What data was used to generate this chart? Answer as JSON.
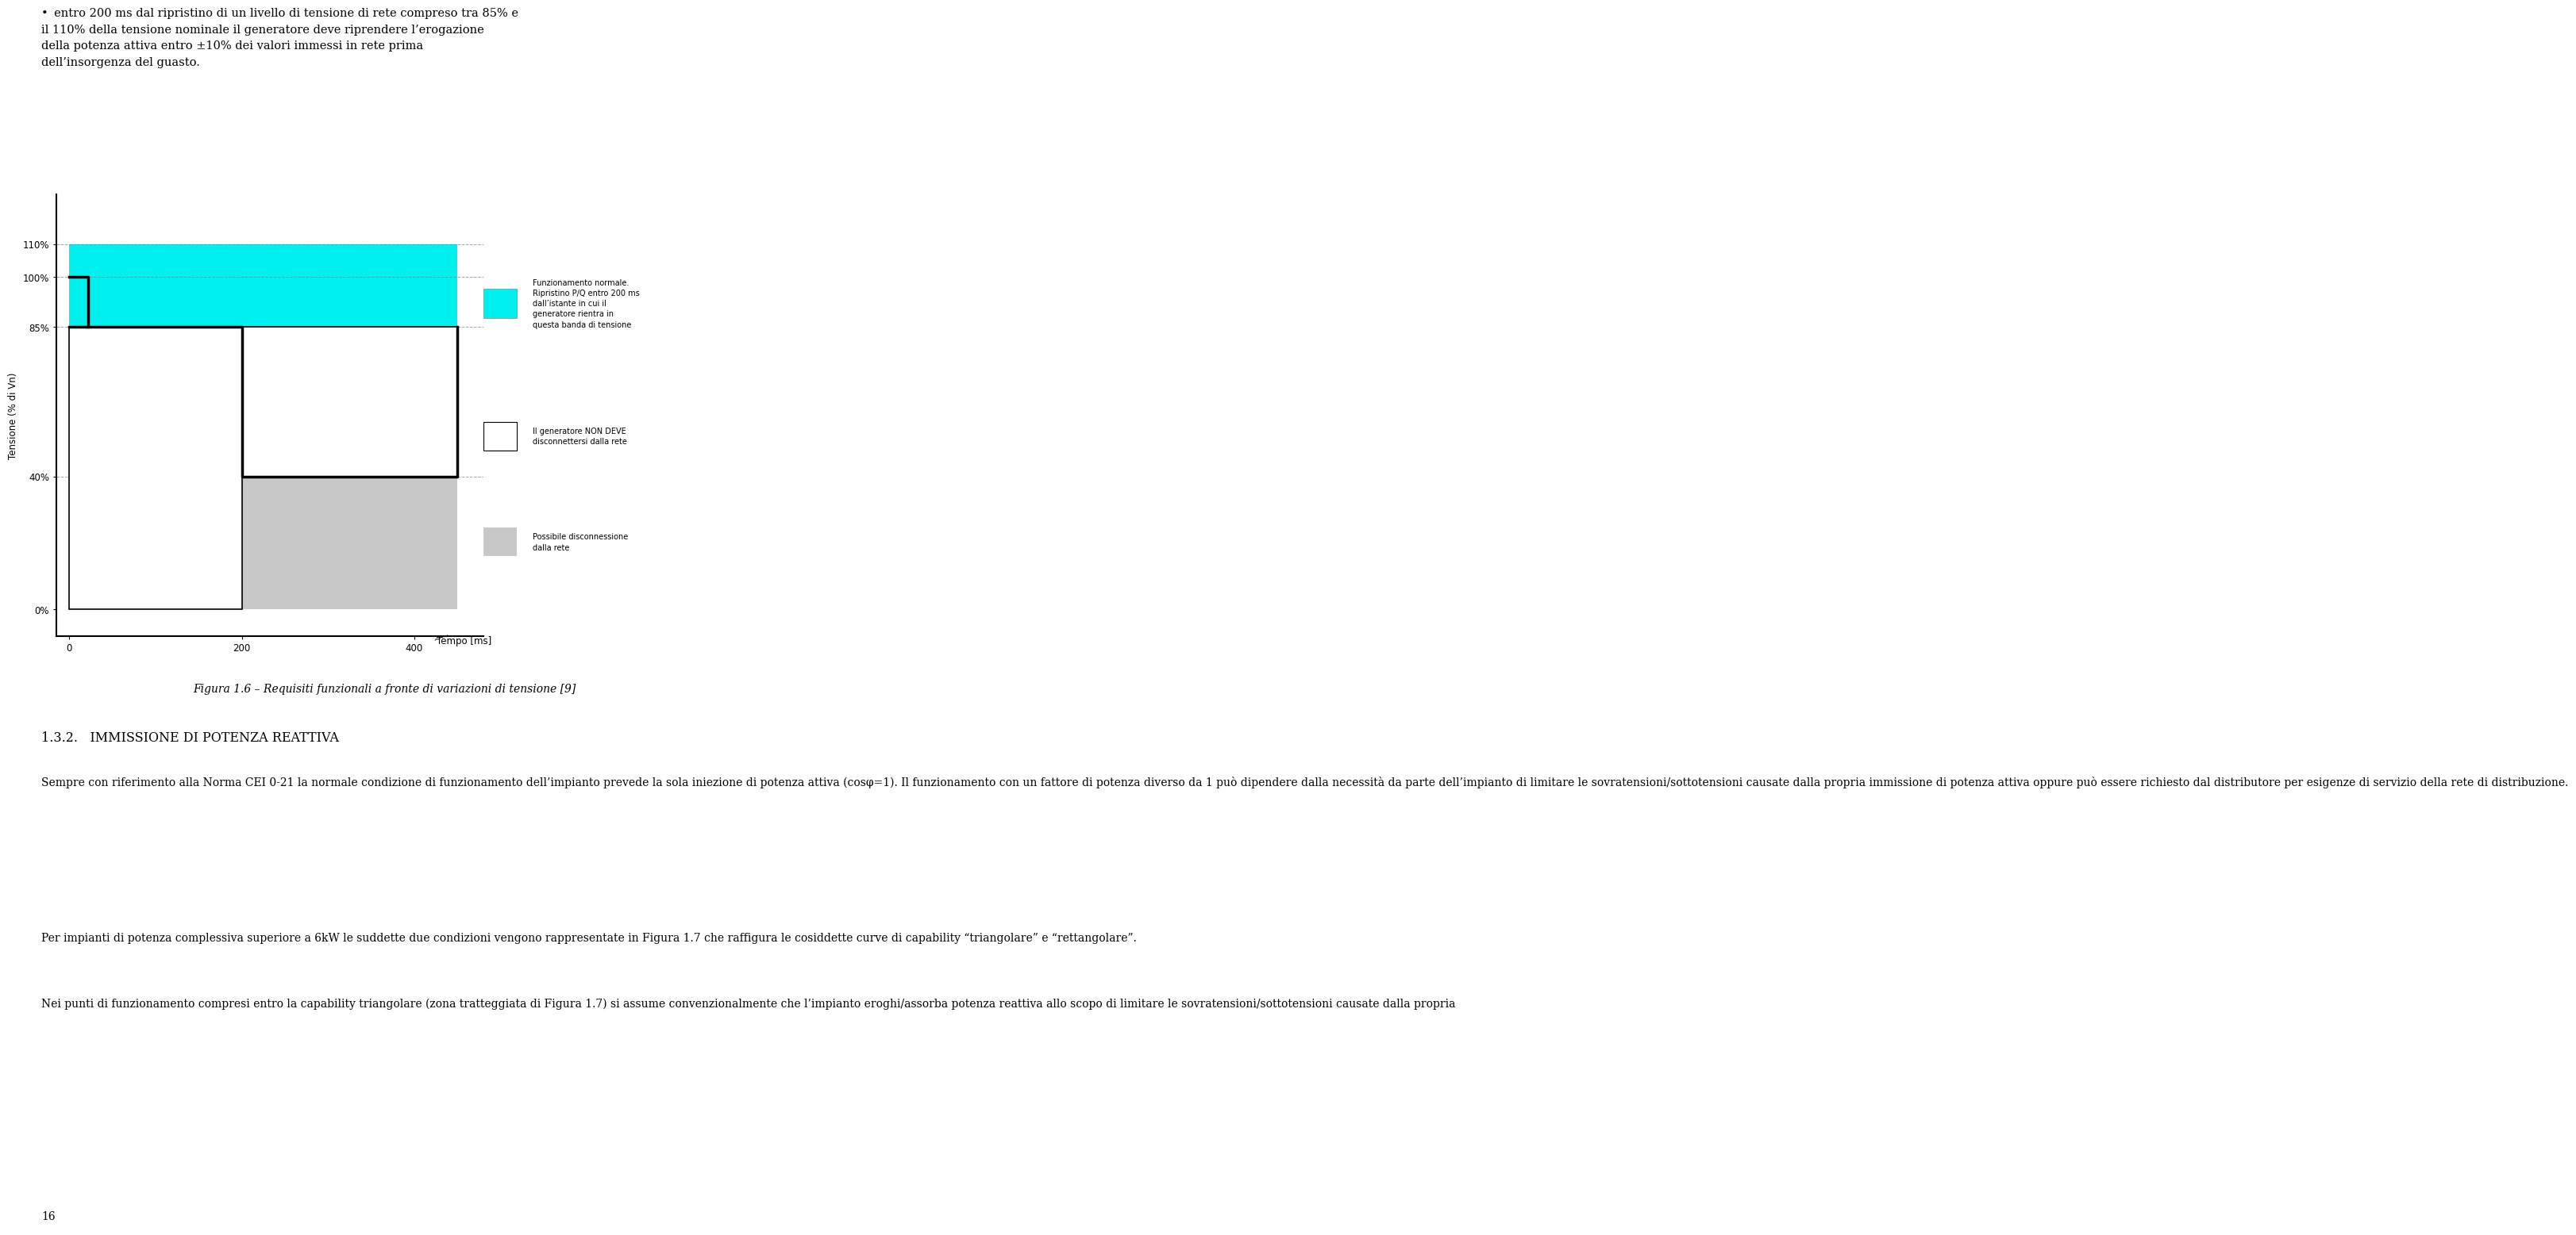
{
  "bullet_text": "entro 200 ms dal ripristino di un livello di tensione di rete compreso tra 85% e\nil 110% della tensione nominale il generatore deve riprendere l’erogazione\ndella potenza attiva entro ±10% dei valori immessi in rete prima\ndell’insorgenza del guasto.",
  "ylabel": "Tensione (% di Vn)",
  "xlabel": "Tempo [ms]",
  "fig_caption": "Figura 1.6 – Requisiti funzionali a fronte di variazioni di tensione [9]",
  "section_title": "1.3.2.   IMMISSIONE DI POTENZA REATTIVA",
  "body_text_1": "Sempre con riferimento alla Norma CEI 0-21 la normale condizione di funzionamento dell’impianto prevede la sola iniezione di potenza attiva (cosφ=1). Il funzionamento con un fattore di potenza diverso da 1 può dipendere dalla necessità da parte dell’impianto di limitare le sovratensioni/sottotensioni causate dalla propria immissione di potenza attiva oppure può essere richiesto dal distributore per esigenze di servizio della rete di distribuzione.",
  "body_text_2": "Per impianti di potenza complessiva superiore a 6kW le suddette due condizioni vengono rappresentate in Figura 1.7 che raffigura le cosiddette curve di capability “triangolare” e “rettangolare”.",
  "body_text_3": "Nei punti di funzionamento compresi entro la capability triangolare (zona tratteggiata di Figura 1.7) si assume convenzionalmente che l’impianto eroghi/assorba potenza reattiva allo scopo di limitare le sovratensioni/sottotensioni causate dalla propria",
  "page_number": "16",
  "legend_label_1": "Funzionamento normale.\nRipristino P/Q entro 200 ms\ndall’istante in cui il\ngeneratore rientra in\nquesta banda di tensione",
  "legend_label_2": "Il generatore NON DEVE\ndisconnettersi dalla rete",
  "legend_label_3": "Possibile disconnessione\ndalla rete",
  "cyan_color": "#00EFEF",
  "gray_color": "#C8C8C8",
  "background_color": "#FFFFFF",
  "yticks": [
    0,
    40,
    85,
    100,
    110
  ],
  "ytick_labels": [
    "0%",
    "40%",
    "85%",
    "100%",
    "110%"
  ],
  "xticks": [
    0,
    200,
    400
  ],
  "xtick_labels": [
    "0",
    "200",
    "400"
  ]
}
